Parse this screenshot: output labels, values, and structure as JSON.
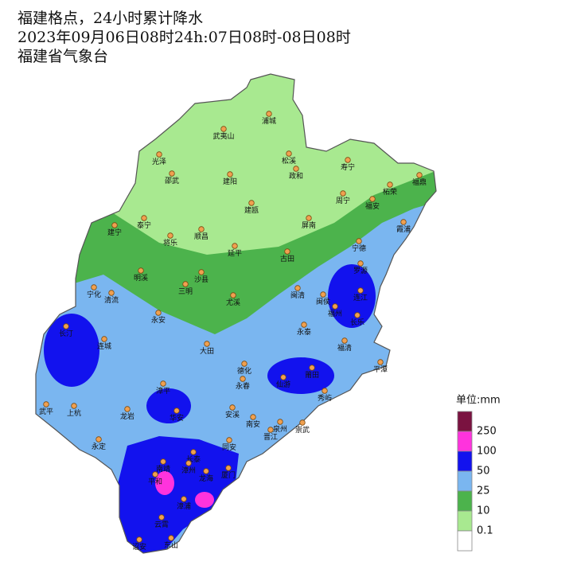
{
  "header": {
    "title": "福建格点，24小时累计降水",
    "subtitle": "2023年09月06日08时24h:07日08时-08日08时",
    "source": "福建省气象台"
  },
  "cities": [
    "浦城",
    "武夷山",
    "光泽",
    "松溪",
    "政和",
    "寿宁",
    "邵武",
    "建阳",
    "柘荣",
    "福鼎",
    "周宁",
    "福安",
    "建瓯",
    "霞浦",
    "泰宁",
    "建宁",
    "屏南",
    "将乐",
    "顺昌",
    "延平",
    "古田",
    "宁德",
    "罗源",
    "明溪",
    "沙县",
    "宁化",
    "清流",
    "三明",
    "尤溪",
    "闽清",
    "连江",
    "闽侯",
    "福州",
    "长乐",
    "永安",
    "长汀",
    "连城",
    "永泰",
    "大田",
    "福清",
    "德化",
    "永春",
    "平潭",
    "莆田",
    "仙游",
    "秀屿",
    "漳平",
    "武平",
    "上杭",
    "龙岩",
    "华安",
    "安溪",
    "南安",
    "泉州",
    "晋江",
    "崇武",
    "永定",
    "同安",
    "长泰",
    "南靖",
    "漳州",
    "厦门",
    "龙海",
    "平和",
    "漳浦",
    "云霄",
    "诏安",
    "东山"
  ],
  "legend": {
    "unit": "单位:mm",
    "colors": [
      "#7a1240",
      "#ff33dd",
      "#1212ee",
      "#7ab6f0",
      "#4cb34c",
      "#a8e990",
      "#ffffff"
    ],
    "labels": [
      "250",
      "100",
      "50",
      "25",
      "10",
      "0.1"
    ]
  }
}
